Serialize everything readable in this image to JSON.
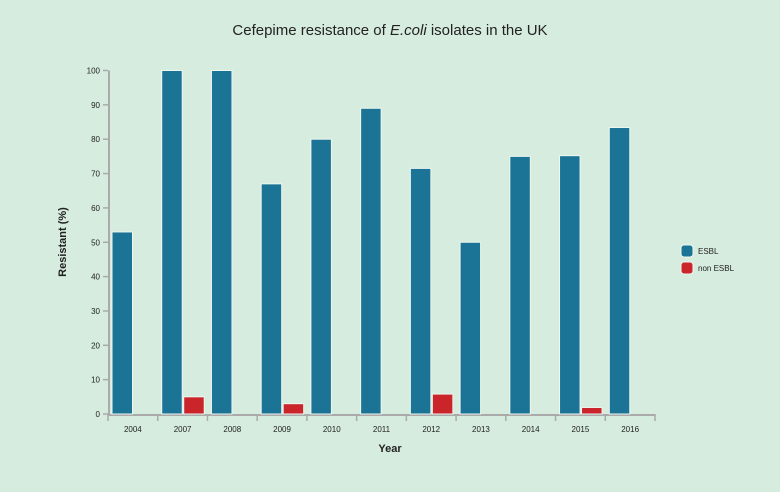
{
  "chart_data": {
    "type": "bar",
    "title_prefix": "Cefepime resistance of ",
    "title_italic": "E.coli",
    "title_suffix": " isolates in the UK",
    "xlabel": "Year",
    "ylabel": "Resistant (%)",
    "ylim": [
      0,
      100
    ],
    "yticks": [
      0,
      10,
      20,
      30,
      40,
      50,
      60,
      70,
      80,
      90,
      100
    ],
    "grid": false,
    "legend_position": "right",
    "categories": [
      "2004",
      "2007",
      "2008",
      "2009",
      "2010",
      "2011",
      "2012",
      "2013",
      "2014",
      "2015",
      "2016"
    ],
    "series": [
      {
        "name": "ESBL",
        "color": "#1b7396",
        "values": [
          53,
          100,
          100,
          67,
          80,
          89,
          71.5,
          50,
          75,
          75.2,
          83.4
        ]
      },
      {
        "name": "non ESBL",
        "color": "#c9252b",
        "values": [
          0,
          5,
          0,
          3,
          0,
          0,
          5.8,
          0,
          0,
          1.9,
          0
        ]
      }
    ]
  }
}
